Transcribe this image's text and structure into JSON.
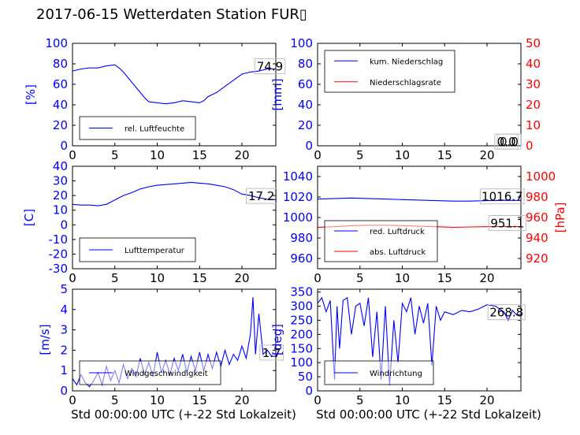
{
  "title": "2017-06-15 Wetterdaten Station FUR\u0000",
  "title_display": "2017-06-15 Wetterdaten Station FUR▯",
  "colors": {
    "primary": "#0000ff",
    "secondary": "#ff0000",
    "axis": "#000000",
    "annotation_box": "#bfbfbf"
  },
  "xlabel": "Std 00:00:00 UTC (+-22 Std Lokalzeit)",
  "chart_data": [
    {
      "type": "line",
      "xlim": [
        0,
        24
      ],
      "ylim": [
        0,
        100
      ],
      "x_ticks": [
        0,
        5,
        10,
        15,
        20
      ],
      "y_ticks": [
        0,
        20,
        40,
        60,
        80,
        100
      ],
      "ylabel": "[%]",
      "xlabel": "",
      "legend": "bottom-left",
      "series": [
        {
          "name": "rel. Luftfeuchte",
          "axis": "left",
          "color": "#0000ff",
          "x": [
            0,
            1,
            2,
            3,
            4,
            5,
            5.5,
            6,
            6.5,
            7,
            7.5,
            8,
            8.5,
            9,
            10,
            11,
            12,
            13,
            14,
            15,
            15.5,
            16,
            17,
            18,
            19,
            20,
            21,
            22,
            23,
            24
          ],
          "y": [
            73,
            75,
            76,
            76,
            78,
            79,
            76,
            72,
            67,
            62,
            57,
            52,
            47,
            43,
            42,
            41,
            42,
            44,
            43,
            42,
            44,
            48,
            52,
            58,
            64,
            70,
            72,
            73,
            74.9,
            75
          ]
        }
      ],
      "annotations": [
        {
          "x": 23.3,
          "y": 78,
          "text": "74.9"
        }
      ]
    },
    {
      "type": "line",
      "xlim": [
        0,
        24
      ],
      "ylim": [
        0,
        100
      ],
      "ylim_right": [
        0,
        50
      ],
      "x_ticks": [
        0,
        5,
        10,
        15,
        20
      ],
      "y_ticks": [
        0,
        20,
        40,
        60,
        80,
        100
      ],
      "y_ticks_right": [
        0,
        10,
        20,
        30,
        40,
        50
      ],
      "ylabel": "[mm]",
      "ylabel_right": "[mm/std]",
      "legend": "top-left",
      "series": [
        {
          "name": "kum. Niederschlag",
          "axis": "left",
          "color": "#0000ff",
          "x": [
            0,
            24
          ],
          "y": [
            0,
            0
          ]
        },
        {
          "name": "Niederschlagsrate",
          "axis": "right",
          "color": "#ff0000",
          "x": [
            0,
            24
          ],
          "y": [
            0,
            0
          ]
        }
      ],
      "annotations": [
        {
          "x": 22.3,
          "y": 4.5,
          "text": "0.0"
        },
        {
          "x": 22.6,
          "y": 4.5,
          "text": "0.0"
        }
      ]
    },
    {
      "type": "line",
      "xlim": [
        0,
        24
      ],
      "ylim": [
        -30,
        40
      ],
      "x_ticks": [
        0,
        5,
        10,
        15,
        20
      ],
      "y_ticks": [
        -30,
        -20,
        -10,
        0,
        10,
        20,
        30,
        40
      ],
      "ylabel": "[C]",
      "xlabel": "",
      "legend": "bottom-left",
      "series": [
        {
          "name": "Lufttemperatur",
          "axis": "left",
          "color": "#0000ff",
          "x": [
            0,
            1,
            2,
            3,
            4,
            5,
            6,
            7,
            8,
            9,
            10,
            11,
            12,
            13,
            14,
            15,
            16,
            17,
            18,
            19,
            20,
            21,
            22,
            23,
            24
          ],
          "y": [
            14,
            13.5,
            13.5,
            13,
            14,
            17,
            20,
            22,
            24.5,
            26,
            27,
            27.5,
            28,
            28.5,
            29,
            28.5,
            28,
            27,
            26,
            24,
            21,
            20,
            18.5,
            17.5,
            17.2
          ]
        }
      ],
      "annotations": [
        {
          "x": 22.3,
          "y": 20,
          "text": "17.2"
        }
      ]
    },
    {
      "type": "line",
      "xlim": [
        0,
        24
      ],
      "ylim": [
        950,
        1050
      ],
      "ylim_right": [
        910,
        1010
      ],
      "x_ticks": [
        0,
        5,
        10,
        15,
        20
      ],
      "y_ticks": [
        960,
        980,
        1000,
        1020,
        1040
      ],
      "y_ticks_right": [
        920,
        940,
        960,
        980,
        1000
      ],
      "ylabel": "",
      "ylabel_right": "[hPa]",
      "legend": "bottom-left",
      "series": [
        {
          "name": "red. Luftdruck",
          "axis": "left",
          "color": "#0000ff",
          "x": [
            0,
            2,
            4,
            6,
            8,
            10,
            12,
            14,
            16,
            18,
            20,
            22,
            24
          ],
          "y": [
            1018,
            1018.5,
            1019,
            1018.5,
            1018,
            1017.5,
            1017,
            1016.5,
            1016,
            1016,
            1016.5,
            1016.8,
            1016.7
          ]
        },
        {
          "name": "abs. Luftdruck",
          "axis": "right",
          "color": "#ff0000",
          "x": [
            0,
            2,
            4,
            6,
            8,
            10,
            12,
            14,
            16,
            18,
            20,
            22,
            24
          ],
          "y": [
            950.5,
            951,
            952,
            952.5,
            952.5,
            952,
            951.5,
            951,
            950.5,
            950.8,
            951,
            951.1,
            951.1
          ]
        }
      ],
      "annotations": [
        {
          "x": 21.8,
          "y": 1021,
          "text": "1016.7"
        },
        {
          "x": 22.4,
          "y": 995,
          "text": "951.1"
        }
      ]
    },
    {
      "type": "line",
      "xlim": [
        0,
        24
      ],
      "ylim": [
        0,
        5
      ],
      "x_ticks": [
        0,
        5,
        10,
        15,
        20
      ],
      "y_ticks": [
        0,
        1,
        2,
        3,
        4,
        5
      ],
      "ylabel": "[m/s]",
      "xlabel": "Std 00:00:00 UTC (+-22 Std Lokalzeit)",
      "legend": "bottom-left",
      "series": [
        {
          "name": "Windgeschwindigkeit",
          "axis": "left",
          "color": "#0000ff",
          "x": [
            0,
            0.5,
            1,
            1.5,
            2,
            2.5,
            3,
            3.5,
            4,
            4.5,
            5,
            5.5,
            6,
            6.5,
            7,
            7.5,
            8,
            8.5,
            9,
            9.5,
            10,
            10.5,
            11,
            11.5,
            12,
            12.5,
            13,
            13.5,
            14,
            14.5,
            15,
            15.5,
            16,
            16.5,
            17,
            17.5,
            18,
            18.5,
            19,
            19.5,
            20,
            20.5,
            21,
            21.3,
            21.6,
            22,
            22.5,
            23,
            23.5,
            24
          ],
          "y": [
            0.6,
            0.3,
            0.8,
            0.4,
            0.2,
            0.5,
            0.9,
            0.3,
            1.2,
            0.5,
            1.0,
            0.4,
            1.3,
            0.6,
            1.1,
            0.7,
            1.6,
            0.8,
            1.4,
            0.7,
            1.9,
            0.9,
            1.5,
            0.8,
            1.6,
            1.0,
            1.8,
            0.9,
            1.7,
            1.0,
            1.9,
            1.0,
            1.8,
            1.1,
            1.9,
            1.2,
            2.0,
            1.3,
            1.8,
            1.5,
            2.2,
            1.6,
            2.8,
            4.6,
            1.8,
            3.8,
            1.8,
            2.0,
            1.7,
            1.7
          ]
        }
      ],
      "annotations": [
        {
          "x": 23.5,
          "y": 1.9,
          "text": "1.7"
        }
      ]
    },
    {
      "type": "line",
      "xlim": [
        0,
        24
      ],
      "ylim": [
        0,
        360
      ],
      "x_ticks": [
        0,
        5,
        10,
        15,
        20
      ],
      "y_ticks": [
        0,
        50,
        100,
        150,
        200,
        250,
        300,
        350
      ],
      "ylabel": "[deg]",
      "xlabel": "Std 00:00:00 UTC (+-22 Std Lokalzeit)",
      "legend": "bottom-left",
      "series": [
        {
          "name": "Windrichtung",
          "axis": "left",
          "color": "#0000ff",
          "x": [
            0,
            0.5,
            1,
            1.5,
            2,
            2.3,
            2.6,
            3,
            3.5,
            4,
            4.5,
            5,
            5.5,
            6,
            6.5,
            7,
            7.5,
            8,
            8.5,
            9,
            9.5,
            10,
            10.5,
            11,
            11.5,
            12,
            12.5,
            13,
            13.5,
            14,
            14.5,
            15,
            16,
            17,
            18,
            19,
            20,
            21,
            22,
            22.5,
            23,
            23.5,
            24
          ],
          "y": [
            310,
            330,
            280,
            320,
            40,
            300,
            150,
            320,
            330,
            200,
            300,
            310,
            230,
            330,
            120,
            280,
            40,
            300,
            20,
            250,
            100,
            310,
            280,
            330,
            200,
            300,
            240,
            310,
            90,
            300,
            250,
            280,
            270,
            285,
            280,
            290,
            305,
            300,
            280,
            250,
            285,
            268.8,
            270
          ]
        }
      ],
      "annotations": [
        {
          "x": 22.3,
          "y": 280,
          "text": "268.8"
        }
      ]
    }
  ]
}
